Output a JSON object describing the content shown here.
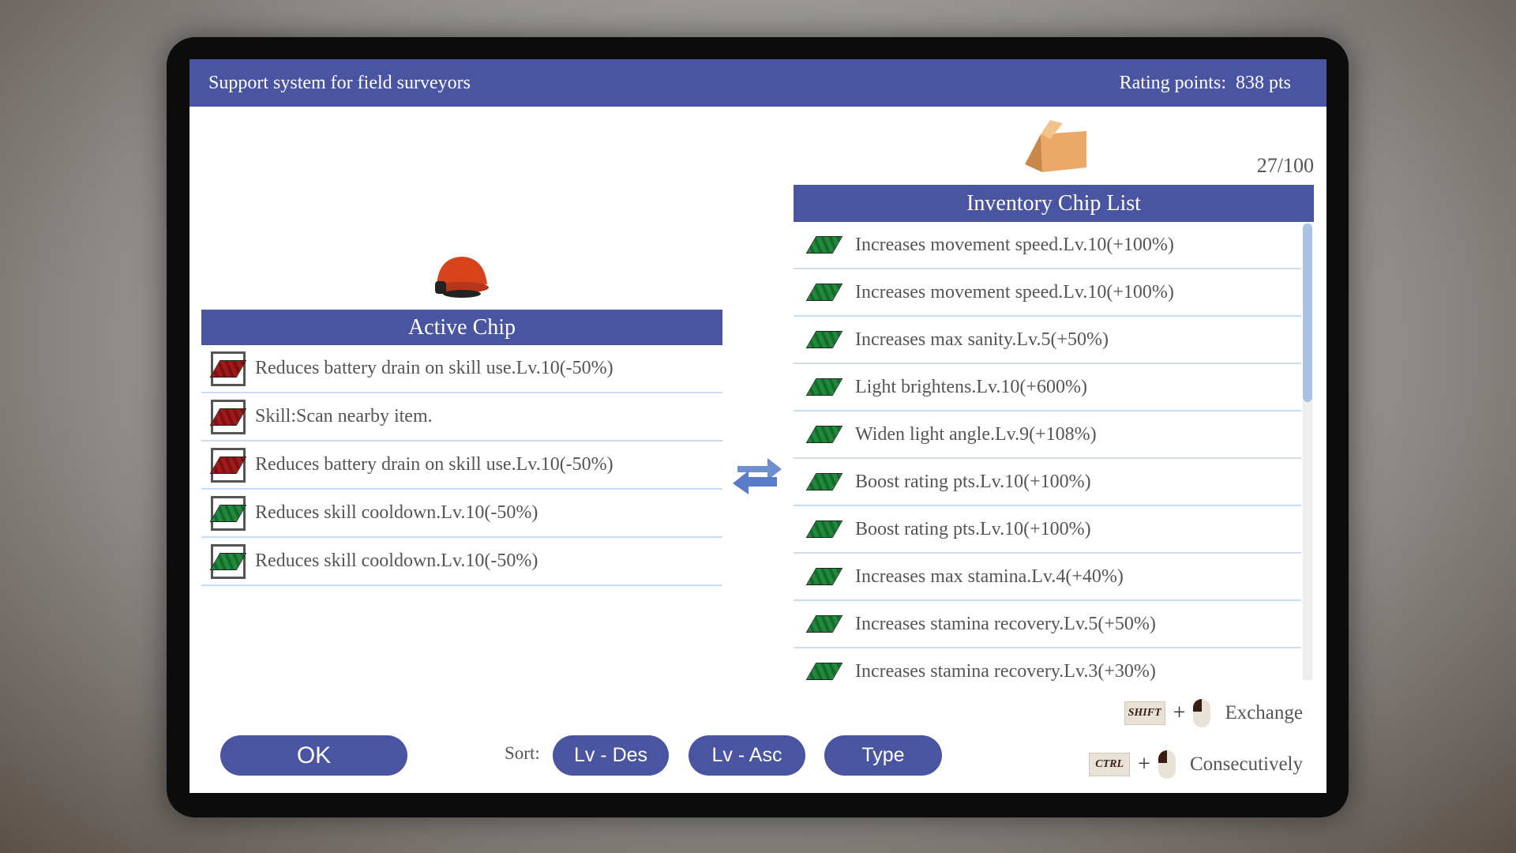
{
  "header": {
    "title": "Support system for field surveyors",
    "rating_label": "Rating points:",
    "rating_value": "838 pts"
  },
  "active": {
    "title": "Active Chip",
    "items": [
      {
        "label": "Reduces battery drain on skill use.Lv.10(-50%)",
        "color": "red"
      },
      {
        "label": "Skill:Scan nearby item.",
        "color": "red"
      },
      {
        "label": "Reduces battery drain on skill use.Lv.10(-50%)",
        "color": "red"
      },
      {
        "label": "Reduces skill cooldown.Lv.10(-50%)",
        "color": "green"
      },
      {
        "label": "Reduces skill cooldown.Lv.10(-50%)",
        "color": "green"
      }
    ]
  },
  "inventory": {
    "title": "Inventory Chip List",
    "count": "27/100",
    "scroll_position": 0,
    "items": [
      {
        "label": "Increases movement speed.Lv.10(+100%)"
      },
      {
        "label": "Increases movement speed.Lv.10(+100%)"
      },
      {
        "label": "Increases max sanity.Lv.5(+50%)"
      },
      {
        "label": "Light brightens.Lv.10(+600%)"
      },
      {
        "label": "Widen light angle.Lv.9(+108%)"
      },
      {
        "label": "Boost rating pts.Lv.10(+100%)"
      },
      {
        "label": "Boost rating pts.Lv.10(+100%)"
      },
      {
        "label": "Increases max stamina.Lv.4(+40%)"
      },
      {
        "label": "Increases stamina recovery.Lv.5(+50%)"
      },
      {
        "label": "Increases stamina recovery.Lv.3(+30%)"
      }
    ]
  },
  "footer": {
    "ok": "OK",
    "sort_label": "Sort:",
    "sort_buttons": [
      "Lv - Des",
      "Lv - Asc",
      "Type"
    ],
    "hints": [
      {
        "key": "SHIFT",
        "action": "Exchange"
      },
      {
        "key": "CTRL",
        "action": "Consecutively"
      }
    ]
  },
  "colors": {
    "accent": "#4a55a2",
    "chip_red": "#a01a1a",
    "chip_green": "#1f8a3c"
  }
}
